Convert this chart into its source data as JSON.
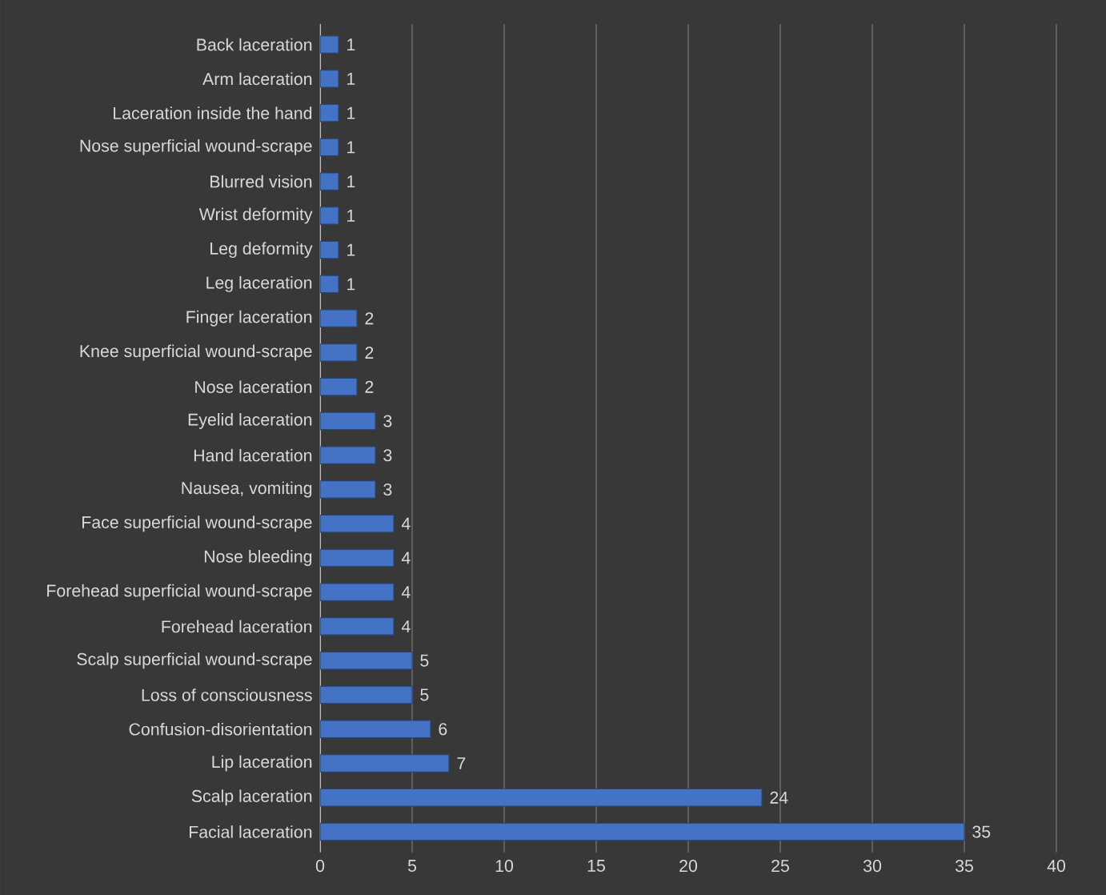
{
  "chart_data": {
    "type": "bar",
    "orientation": "horizontal",
    "data_labels": true,
    "grid": "x",
    "color": "#4472c4",
    "categories": [
      "Back laceration",
      "Arm laceration",
      "Laceration inside the hand",
      "Nose superficial wound-scrape",
      "Blurred vision",
      "Wrist deformity",
      "Leg deformity",
      "Leg laceration",
      "Finger laceration",
      "Knee superficial wound-scrape",
      "Nose laceration",
      "Eyelid laceration",
      "Hand laceration",
      "Nausea, vomiting",
      "Face superficial wound-scrape",
      "Nose bleeding",
      "Forehead superficial wound-scrape",
      "Forehead laceration",
      "Scalp superficial wound-scrape",
      "Loss of consciousness",
      "Confusion-disorientation",
      "Lip laceration",
      "Scalp laceration",
      "Facial laceration"
    ],
    "values": [
      1,
      1,
      1,
      1,
      1,
      1,
      1,
      1,
      2,
      2,
      2,
      3,
      3,
      3,
      4,
      4,
      4,
      4,
      5,
      5,
      6,
      7,
      24,
      35
    ],
    "xlim": [
      0,
      40
    ],
    "xticks": [
      0,
      5,
      10,
      15,
      20,
      25,
      30,
      35,
      40
    ]
  }
}
